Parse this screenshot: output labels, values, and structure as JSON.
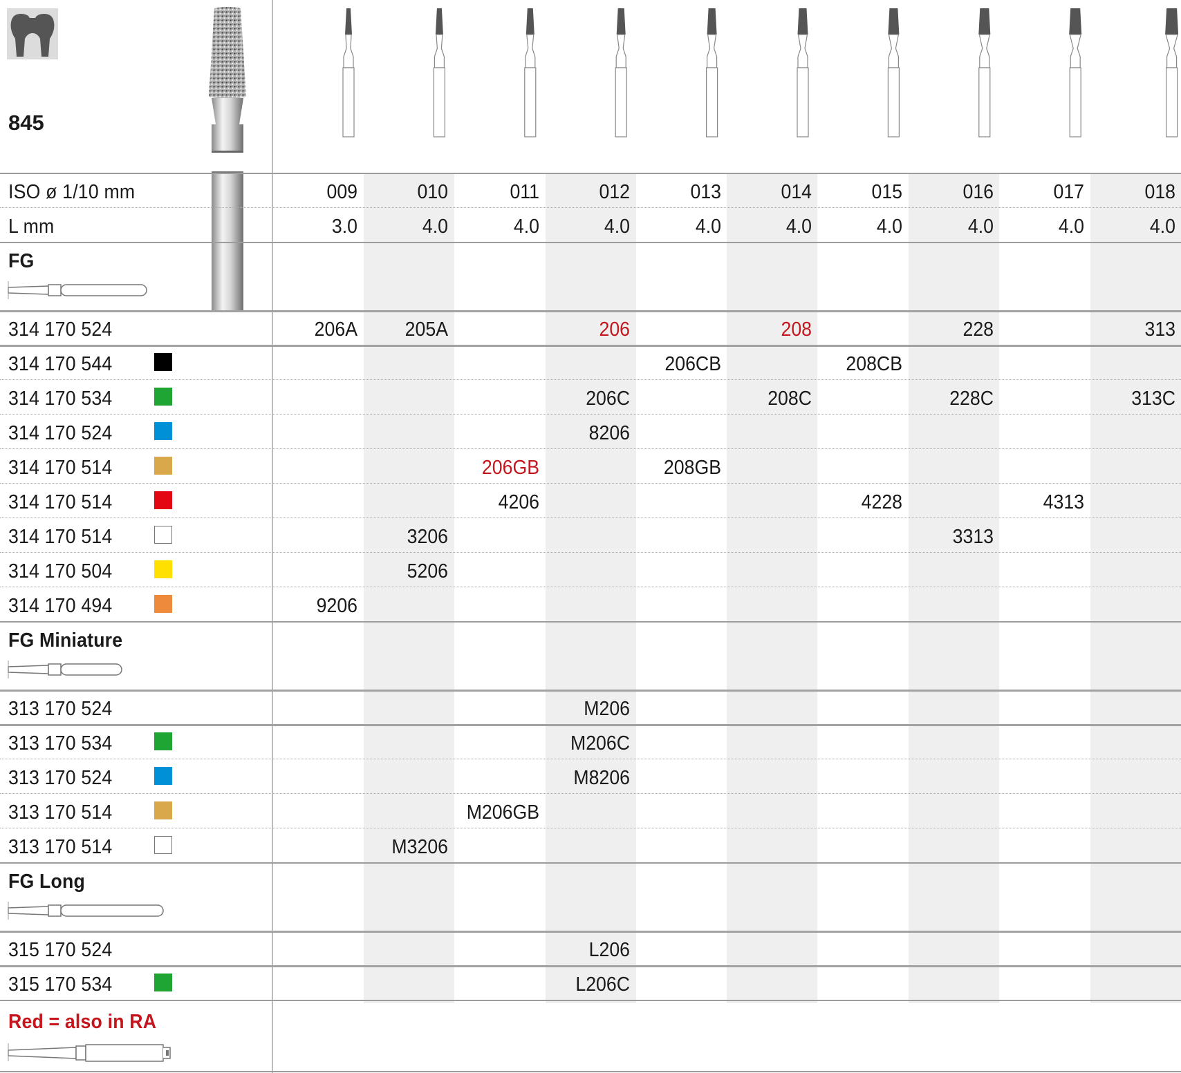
{
  "product": {
    "number": "845"
  },
  "header_rows": {
    "iso_label": "ISO ø 1/10 mm",
    "iso_values": [
      "009",
      "010",
      "011",
      "012",
      "013",
      "014",
      "015",
      "016",
      "017",
      "018"
    ],
    "length_label": "L mm",
    "length_values": [
      "3.0",
      "4.0",
      "4.0",
      "4.0",
      "4.0",
      "4.0",
      "4.0",
      "4.0",
      "4.0",
      "4.0"
    ]
  },
  "colors": {
    "black": "#000000",
    "green": "#1ea534",
    "blue": "#0090d8",
    "gold": "#d9a84a",
    "red": "#e30613",
    "white": "#ffffff",
    "yellow": "#ffe000",
    "orange": "#ee8a3c",
    "highlight_text": "#c4161c"
  },
  "sections": [
    {
      "name": "FG",
      "shank_icon": "fg-shank-icon",
      "rows": [
        {
          "code": "314 170 524",
          "ring": null,
          "cells": {
            "0": "206A",
            "1": "205A",
            "3": "206",
            "5": "208",
            "7": "228",
            "9": "313"
          },
          "red_cells": [
            "3",
            "5"
          ]
        },
        {
          "code": "314 170 544",
          "ring": "black",
          "cells": {
            "4": "206CB",
            "6": "208CB"
          }
        },
        {
          "code": "314 170 534",
          "ring": "green",
          "cells": {
            "3": "206C",
            "5": "208C",
            "7": "228C",
            "9": "313C"
          }
        },
        {
          "code": "314 170 524",
          "ring": "blue",
          "cells": {
            "3": "8206"
          }
        },
        {
          "code": "314 170 514",
          "ring": "gold",
          "cells": {
            "2": "206GB",
            "4": "208GB"
          },
          "red_cells": [
            "2"
          ]
        },
        {
          "code": "314 170 514",
          "ring": "red",
          "cells": {
            "2": "4206",
            "6": "4228",
            "8": "4313"
          }
        },
        {
          "code": "314 170 514",
          "ring": "white",
          "cells": {
            "1": "3206",
            "7": "3313"
          }
        },
        {
          "code": "314 170 504",
          "ring": "yellow",
          "cells": {
            "1": "5206"
          }
        },
        {
          "code": "314 170 494",
          "ring": "orange",
          "cells": {
            "0": "9206"
          }
        }
      ]
    },
    {
      "name": "FG Miniature",
      "shank_icon": "fg-miniature-shank-icon",
      "rows": [
        {
          "code": "313 170 524",
          "ring": null,
          "cells": {
            "3": "M206"
          }
        },
        {
          "code": "313 170 534",
          "ring": "green",
          "cells": {
            "3": "M206C"
          }
        },
        {
          "code": "313 170 524",
          "ring": "blue",
          "cells": {
            "3": "M8206"
          }
        },
        {
          "code": "313 170 514",
          "ring": "gold",
          "cells": {
            "2": "M206GB"
          }
        },
        {
          "code": "313 170 514",
          "ring": "white",
          "cells": {
            "1": "M3206"
          }
        }
      ]
    },
    {
      "name": "FG Long",
      "shank_icon": "fg-long-shank-icon",
      "rows": [
        {
          "code": "315 170 524",
          "ring": null,
          "cells": {
            "3": "L206"
          }
        },
        {
          "code": "315 170 534",
          "ring": "green",
          "cells": {
            "3": "L206C"
          }
        }
      ]
    }
  ],
  "footer": {
    "note": "Red = also in RA",
    "shank_icon": "ra-shank-icon"
  }
}
